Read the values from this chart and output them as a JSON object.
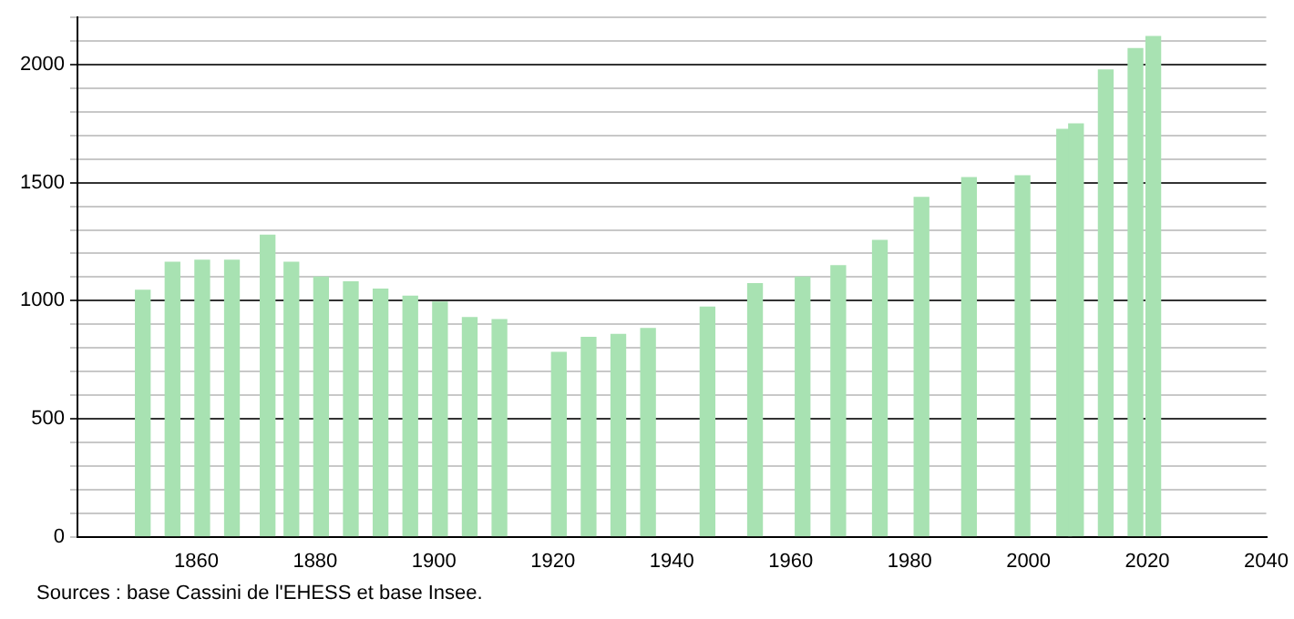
{
  "chart_data": {
    "type": "bar",
    "x": [
      1851,
      1856,
      1861,
      1866,
      1872,
      1876,
      1881,
      1886,
      1891,
      1896,
      1901,
      1906,
      1911,
      1921,
      1926,
      1931,
      1936,
      1946,
      1954,
      1962,
      1968,
      1975,
      1982,
      1990,
      1999,
      2006,
      2008,
      2013,
      2018,
      2021
    ],
    "values": [
      1044,
      1163,
      1171,
      1171,
      1277,
      1163,
      1100,
      1080,
      1049,
      1019,
      994,
      928,
      920,
      781,
      844,
      857,
      882,
      973,
      1072,
      1100,
      1148,
      1255,
      1437,
      1521,
      1529,
      1726,
      1749,
      1977,
      2068,
      2119
    ],
    "color": "#a8e2b2",
    "xlim": [
      1840,
      2040
    ],
    "xticks": [
      1860,
      1880,
      1900,
      1920,
      1940,
      1960,
      1980,
      2000,
      2020,
      2040
    ],
    "ylim": [
      0,
      2200
    ],
    "yticks": [
      0,
      {
        "value": 100,
        "label": null
      },
      {
        "value": 200,
        "label": null
      },
      {
        "value": 300,
        "label": null
      },
      {
        "value": 400,
        "label": null
      },
      500,
      {
        "value": 600,
        "label": null
      },
      {
        "value": 700,
        "label": null
      },
      {
        "value": 800,
        "label": null
      },
      {
        "value": 900,
        "label": null
      },
      1000,
      {
        "value": 1100,
        "label": null
      },
      {
        "value": 1200,
        "label": null
      },
      {
        "value": 1300,
        "label": null
      },
      {
        "value": 1400,
        "label": null
      },
      1500,
      {
        "value": 1600,
        "label": null
      },
      {
        "value": 1700,
        "label": null
      },
      {
        "value": 1800,
        "label": null
      },
      {
        "value": 1900,
        "label": null
      },
      2000,
      {
        "value": 2100,
        "label": null
      },
      {
        "value": 2200,
        "label": null
      }
    ],
    "grid": "y",
    "annotations": [
      "Sources : base Cassini de l'EHESS et base Insee."
    ]
  }
}
